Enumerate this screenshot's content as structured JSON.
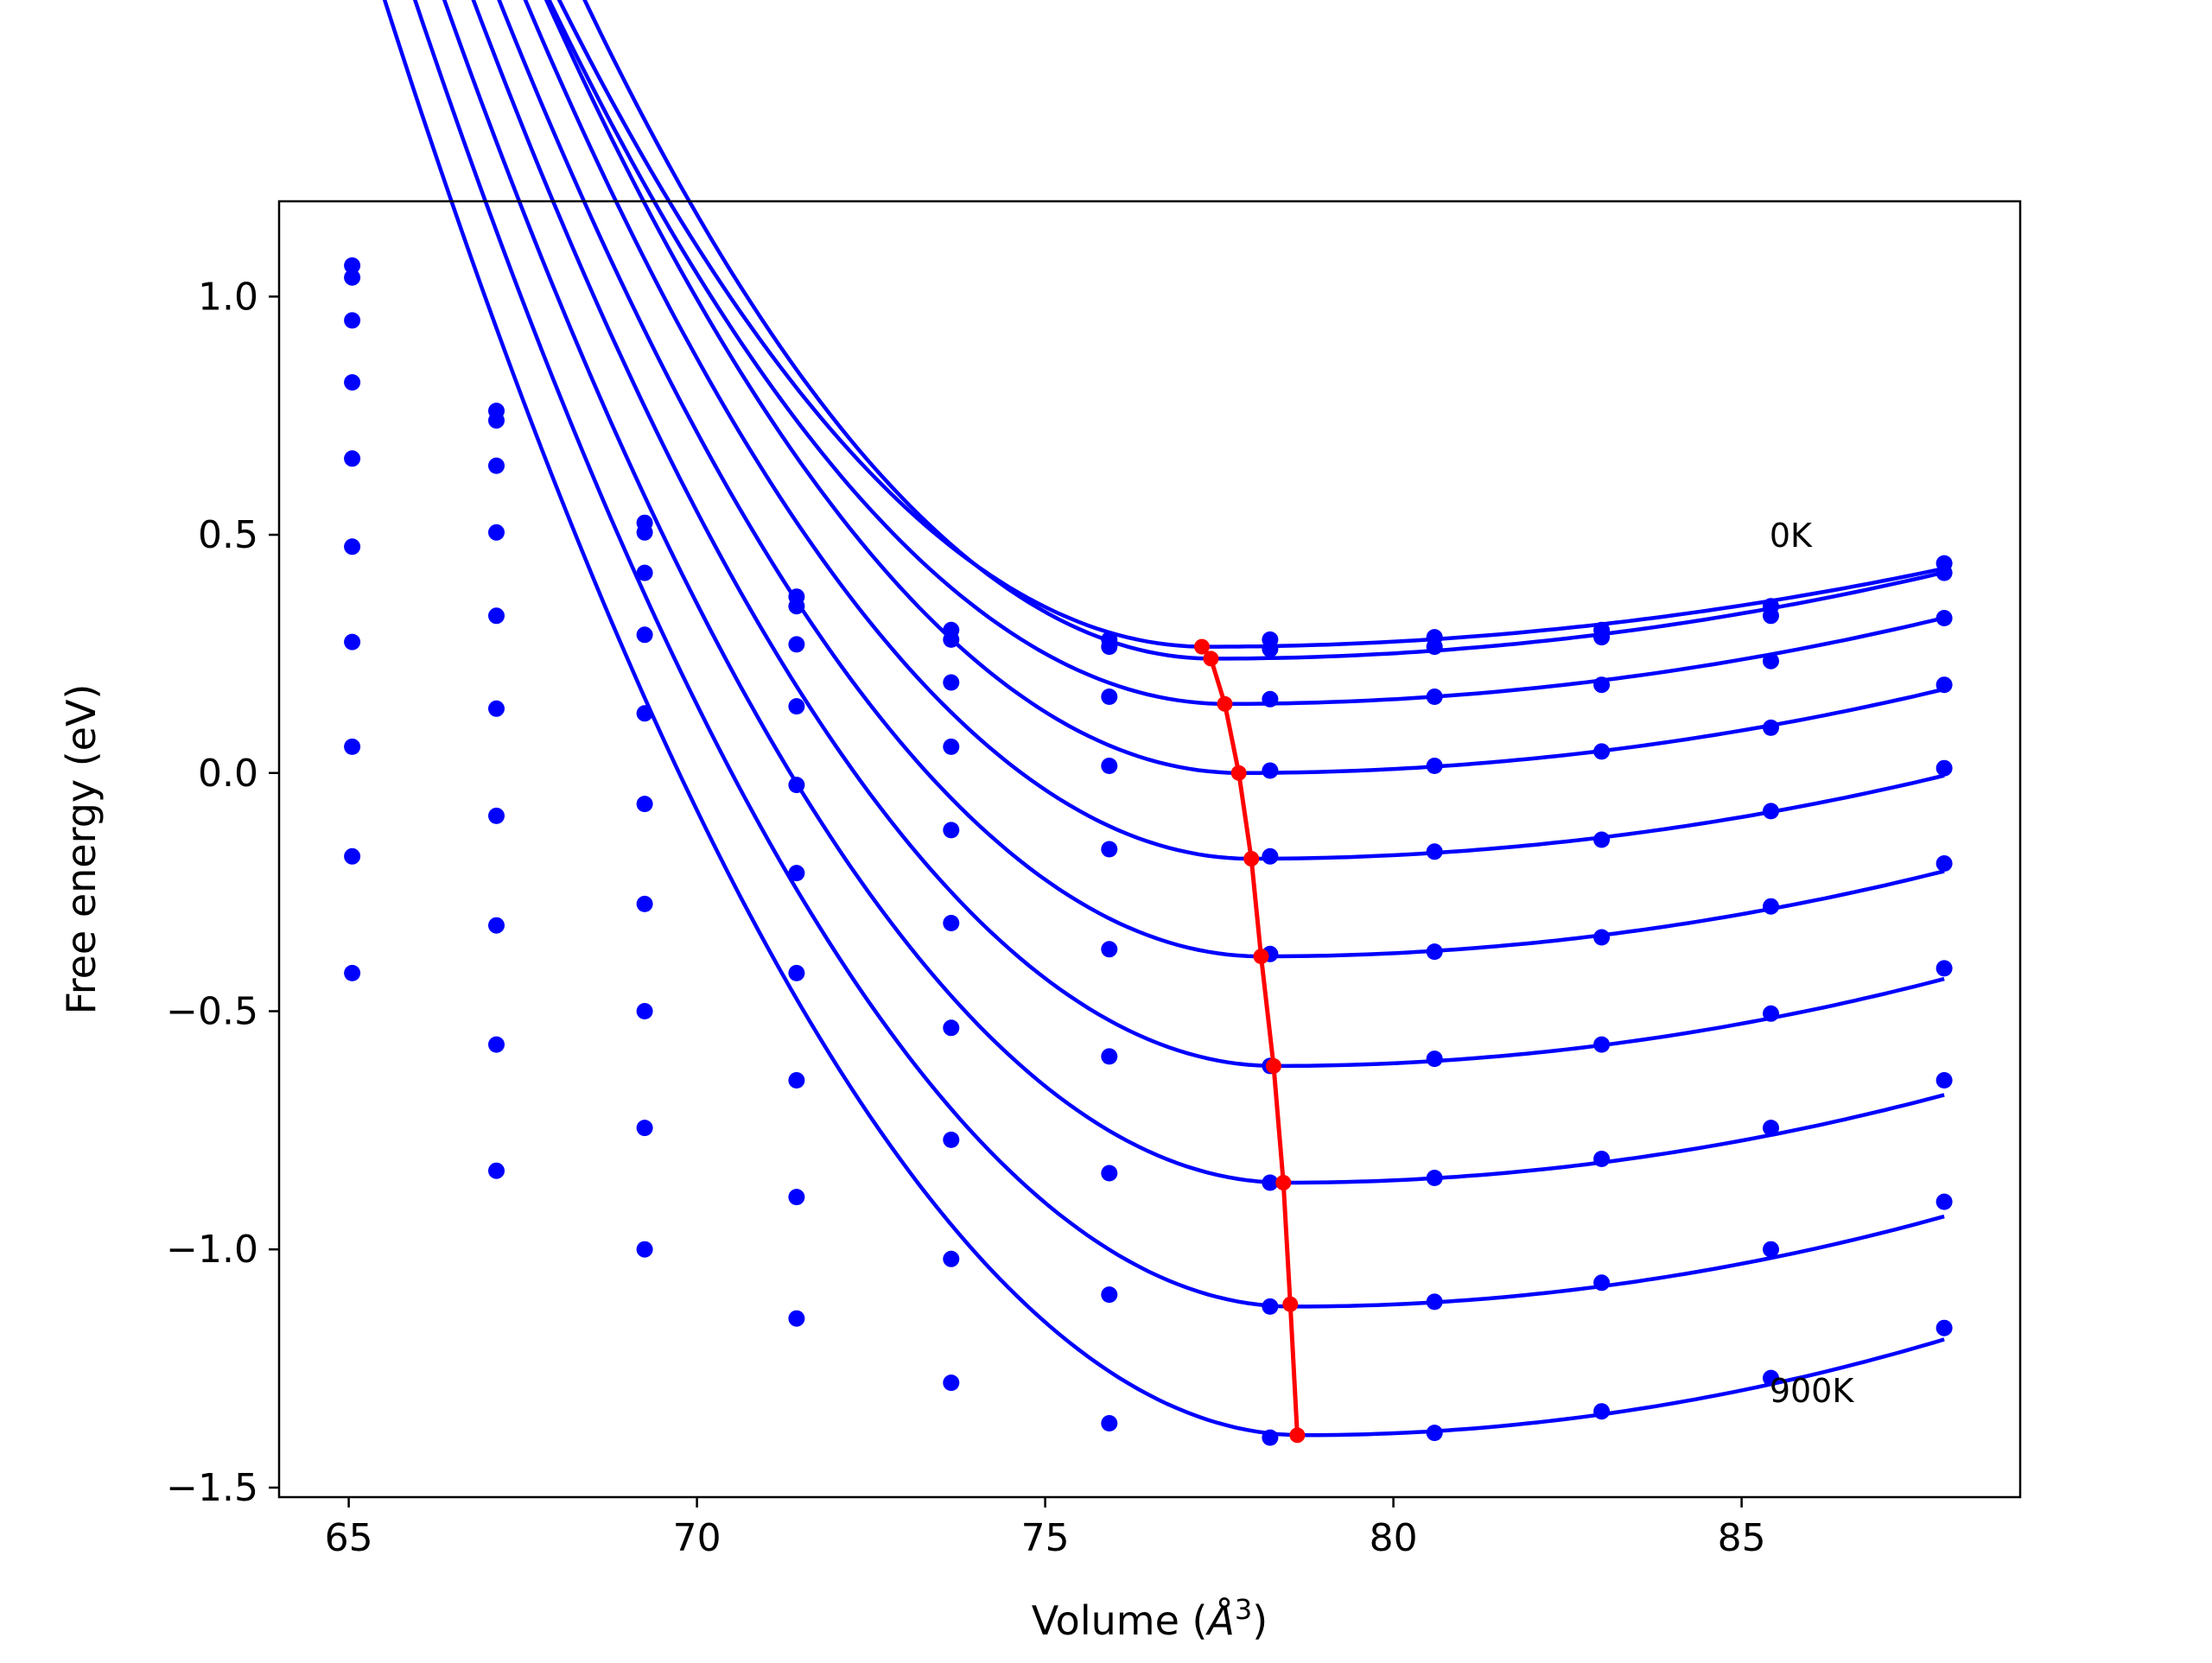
{
  "chart_data": {
    "type": "line",
    "title": "",
    "xlabel": "Volume (",
    "xlabel_symbol": "Å",
    "xlabel_exp": "3",
    "xlabel_close": ")",
    "ylabel": "Free energy (eV)",
    "xlim": [
      64.0,
      89.0
    ],
    "ylim": [
      -1.52,
      1.2
    ],
    "xticks": [
      65,
      70,
      75,
      80,
      85
    ],
    "xtick_labels": [
      "65",
      "70",
      "75",
      "80",
      "85"
    ],
    "yticks": [
      -1.5,
      -1.0,
      -0.5,
      0.0,
      0.5,
      1.0
    ],
    "ytick_labels": [
      "−1.5",
      "−1.0",
      "−0.5",
      "0.0",
      "0.5",
      "1.0"
    ],
    "grid": false,
    "colors": {
      "fit": "#0000ff",
      "points": "#0000ff",
      "minimum": "#ff0000"
    },
    "volumes": [
      65.05,
      67.12,
      69.25,
      71.43,
      73.65,
      75.92,
      78.23,
      80.59,
      82.99,
      85.42,
      87.91
    ],
    "series": [
      {
        "points": [
          1.065,
          0.76,
          0.525,
          0.37,
          0.3,
          0.28,
          0.28,
          0.285,
          0.3,
          0.33,
          0.44
        ],
        "fit": {
          "vmin": 77.3,
          "emin": 0.265,
          "a_left": 0.01577,
          "a_right": 0.00146
        }
      },
      {
        "points": [
          1.04,
          0.74,
          0.505,
          0.35,
          0.28,
          0.265,
          0.26,
          0.265,
          0.285,
          0.35,
          0.42
        ],
        "fit": {
          "vmin": 77.4,
          "emin": 0.24,
          "a_left": 0.01702,
          "a_right": 0.00164
        }
      },
      {
        "points": [
          0.95,
          0.645,
          0.42,
          0.27,
          0.19,
          0.16,
          0.155,
          0.16,
          0.185,
          0.235,
          0.325
        ],
        "fit": {
          "vmin": 77.6,
          "emin": 0.145,
          "a_left": 0.01563,
          "a_right": 0.0017
        }
      },
      {
        "points": [
          0.82,
          0.505,
          0.29,
          0.14,
          0.055,
          0.015,
          0.005,
          0.015,
          0.045,
          0.095,
          0.185
        ],
        "fit": {
          "vmin": 77.8,
          "emin": 0.0,
          "a_left": 0.01635,
          "a_right": 0.00172
        }
      },
      {
        "points": [
          0.66,
          0.33,
          0.125,
          -0.025,
          -0.12,
          -0.16,
          -0.175,
          -0.165,
          -0.14,
          -0.08,
          0.01
        ],
        "fit": {
          "vmin": 77.95,
          "emin": -0.18,
          "a_left": 0.01662,
          "a_right": 0.00176
        }
      },
      {
        "points": [
          0.475,
          0.135,
          -0.065,
          -0.21,
          -0.315,
          -0.37,
          -0.38,
          -0.375,
          -0.345,
          -0.28,
          -0.19
        ],
        "fit": {
          "vmin": 78.1,
          "emin": -0.385,
          "a_left": 0.01677,
          "a_right": 0.00186
        }
      },
      {
        "points": [
          0.275,
          -0.09,
          -0.275,
          -0.42,
          -0.535,
          -0.595,
          -0.615,
          -0.6,
          -0.57,
          -0.505,
          -0.41
        ],
        "fit": {
          "vmin": 78.3,
          "emin": -0.615,
          "a_left": 0.01689,
          "a_right": 0.00198
        }
      },
      {
        "points": [
          0.055,
          -0.32,
          -0.5,
          -0.645,
          -0.77,
          -0.84,
          -0.86,
          -0.85,
          -0.81,
          -0.745,
          -0.645
        ],
        "fit": {
          "vmin": 78.45,
          "emin": -0.86,
          "a_left": 0.01702,
          "a_right": 0.00206
        }
      },
      {
        "points": [
          -0.175,
          -0.57,
          -0.745,
          -0.89,
          -1.02,
          -1.095,
          -1.12,
          -1.11,
          -1.07,
          -1.0,
          -0.9
        ],
        "fit": {
          "vmin": 78.55,
          "emin": -1.12,
          "a_left": 0.01728,
          "a_right": 0.00216
        }
      },
      {
        "points": [
          -0.42,
          -0.835,
          -1.0,
          -1.145,
          -1.28,
          -1.365,
          -1.395,
          -1.385,
          -1.34,
          -1.27,
          -1.165
        ],
        "fit": {
          "vmin": 78.7,
          "emin": -1.39,
          "a_left": 0.01733,
          "a_right": 0.00237
        }
      }
    ],
    "minima_path": {
      "x": [
        77.25,
        77.38,
        77.58,
        77.78,
        77.96,
        78.1,
        78.28,
        78.42,
        78.52,
        78.62
      ],
      "y": [
        0.265,
        0.24,
        0.145,
        0.0,
        -0.18,
        -0.385,
        -0.615,
        -0.86,
        -1.115,
        -1.39
      ]
    },
    "annotations": [
      {
        "text": "0K",
        "x": 85.4,
        "y": 0.5
      },
      {
        "text": "900K",
        "x": 85.4,
        "y": -1.295
      }
    ]
  }
}
